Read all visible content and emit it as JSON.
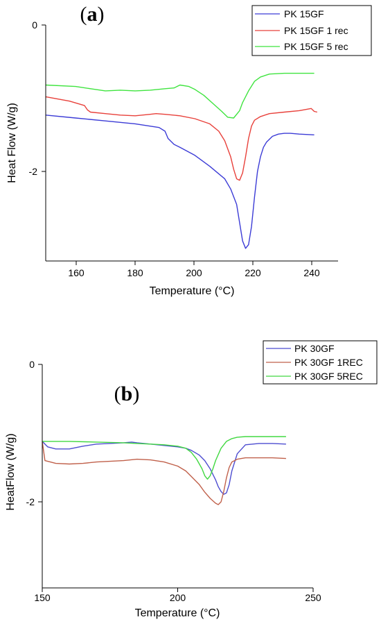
{
  "chart_data": [
    {
      "type": "line",
      "panel_label": "a",
      "xlabel": "Temperature (°C)",
      "ylabel": "Heat Flow (W/g)",
      "xlim": [
        150,
        248
      ],
      "ylim": [
        -3.25,
        0
      ],
      "x_ticks": [
        "160",
        "180",
        "200",
        "220",
        "240"
      ],
      "y_ticks": [
        "0",
        "-2"
      ],
      "legend_position": "top-right",
      "series": [
        {
          "name": "PK 15GF",
          "color": "#3b3bd6",
          "x": [
            150,
            160,
            170,
            180,
            188,
            190,
            191,
            193,
            195,
            200,
            205,
            210,
            212,
            214,
            215,
            216,
            217,
            218,
            219,
            220,
            221,
            222,
            223,
            224,
            226,
            228,
            230,
            232,
            235,
            240
          ],
          "y": [
            -1.23,
            -1.27,
            -1.31,
            -1.35,
            -1.4,
            -1.45,
            -1.55,
            -1.63,
            -1.67,
            -1.78,
            -1.93,
            -2.1,
            -2.24,
            -2.45,
            -2.7,
            -2.95,
            -3.05,
            -3.0,
            -2.75,
            -2.35,
            -2.0,
            -1.8,
            -1.67,
            -1.6,
            -1.52,
            -1.49,
            -1.48,
            -1.48,
            -1.49,
            -1.5
          ]
        },
        {
          "name": "PK 15GF 1 rec",
          "color": "#e8403a",
          "x": [
            150,
            158,
            163,
            164,
            165,
            170,
            175,
            180,
            185,
            187,
            190,
            195,
            200,
            205,
            208,
            210,
            212,
            213,
            214,
            215,
            216,
            217,
            218,
            219,
            220,
            222,
            225,
            230,
            235,
            239,
            240,
            241
          ],
          "y": [
            -0.98,
            -1.04,
            -1.1,
            -1.16,
            -1.19,
            -1.21,
            -1.23,
            -1.24,
            -1.22,
            -1.21,
            -1.22,
            -1.24,
            -1.28,
            -1.35,
            -1.45,
            -1.58,
            -1.8,
            -1.97,
            -2.1,
            -2.12,
            -2.02,
            -1.8,
            -1.55,
            -1.38,
            -1.3,
            -1.25,
            -1.21,
            -1.19,
            -1.17,
            -1.14,
            -1.18,
            -1.19
          ]
        },
        {
          "name": "PK 15GF 5 rec",
          "color": "#3fe43f",
          "x": [
            150,
            160,
            165,
            170,
            175,
            180,
            185,
            190,
            193,
            195,
            198,
            200,
            203,
            206,
            209,
            211,
            213,
            215,
            216,
            218,
            220,
            222,
            225,
            230,
            235,
            240
          ],
          "y": [
            -0.82,
            -0.84,
            -0.87,
            -0.9,
            -0.89,
            -0.9,
            -0.89,
            -0.87,
            -0.86,
            -0.82,
            -0.84,
            -0.88,
            -0.96,
            -1.07,
            -1.18,
            -1.26,
            -1.27,
            -1.17,
            -1.06,
            -0.9,
            -0.77,
            -0.71,
            -0.67,
            -0.66,
            -0.66,
            -0.66
          ]
        }
      ]
    },
    {
      "type": "line",
      "panel_label": "b",
      "xlabel": "Temperature (°C)",
      "ylabel": "HeatFlow (W/g)",
      "xlim": [
        150,
        250
      ],
      "ylim": [
        -3.25,
        0
      ],
      "x_ticks": [
        "150",
        "200",
        "250"
      ],
      "y_ticks": [
        "0",
        "-2"
      ],
      "legend_position": "top-right",
      "series": [
        {
          "name": "PK 30GF",
          "color": "#4c4cd0",
          "x": [
            150,
            152,
            155,
            160,
            165,
            170,
            175,
            180,
            183,
            185,
            190,
            195,
            200,
            203,
            205,
            208,
            210,
            212,
            214,
            215,
            216,
            217,
            218,
            219,
            220,
            222,
            225,
            230,
            235,
            240
          ],
          "y": [
            -1.12,
            -1.2,
            -1.23,
            -1.23,
            -1.19,
            -1.16,
            -1.15,
            -1.14,
            -1.13,
            -1.14,
            -1.16,
            -1.18,
            -1.2,
            -1.22,
            -1.25,
            -1.32,
            -1.4,
            -1.52,
            -1.68,
            -1.78,
            -1.85,
            -1.89,
            -1.87,
            -1.75,
            -1.55,
            -1.3,
            -1.17,
            -1.15,
            -1.15,
            -1.16
          ]
        },
        {
          "name": "PK 30GF 1REC",
          "color": "#c0604a",
          "x": [
            150,
            151,
            155,
            160,
            165,
            170,
            175,
            180,
            185,
            190,
            195,
            200,
            203,
            205,
            208,
            210,
            212,
            214,
            215,
            216,
            217,
            218,
            219,
            220,
            222,
            225,
            230,
            235,
            240
          ],
          "y": [
            -1.12,
            -1.4,
            -1.44,
            -1.45,
            -1.44,
            -1.42,
            -1.41,
            -1.4,
            -1.38,
            -1.39,
            -1.42,
            -1.48,
            -1.55,
            -1.63,
            -1.75,
            -1.86,
            -1.95,
            -2.02,
            -2.04,
            -2.0,
            -1.85,
            -1.65,
            -1.5,
            -1.42,
            -1.38,
            -1.36,
            -1.36,
            -1.36,
            -1.37
          ]
        },
        {
          "name": "PK 30GF 5REC",
          "color": "#40d840",
          "x": [
            150,
            160,
            170,
            180,
            185,
            190,
            195,
            200,
            203,
            205,
            207,
            209,
            210,
            211,
            212,
            213,
            214,
            216,
            218,
            220,
            222,
            225,
            230,
            235,
            240
          ],
          "y": [
            -1.12,
            -1.12,
            -1.13,
            -1.14,
            -1.15,
            -1.16,
            -1.17,
            -1.19,
            -1.22,
            -1.28,
            -1.38,
            -1.52,
            -1.62,
            -1.67,
            -1.62,
            -1.52,
            -1.4,
            -1.22,
            -1.12,
            -1.08,
            -1.06,
            -1.05,
            -1.05,
            -1.05,
            -1.05
          ]
        }
      ]
    }
  ]
}
